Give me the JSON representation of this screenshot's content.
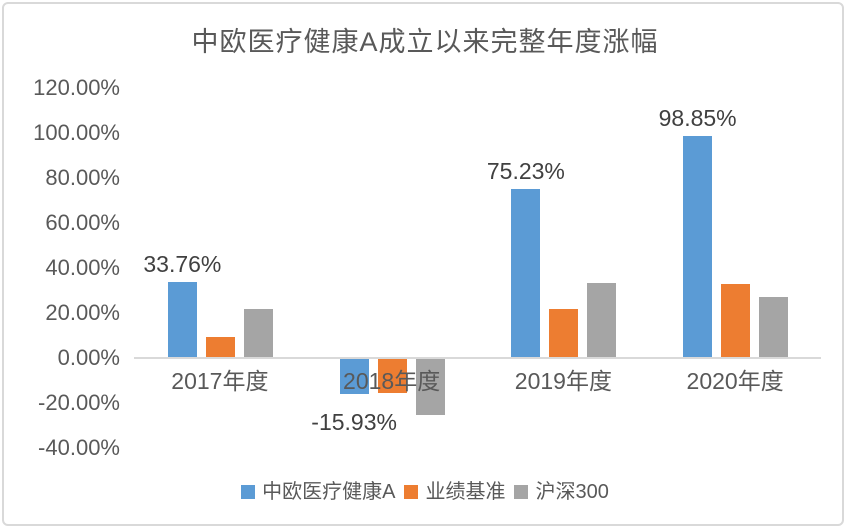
{
  "page": {
    "background": "#ffffff",
    "border_color": "#d9d9d9"
  },
  "chart_data": {
    "type": "bar",
    "title": "中欧医疗健康A成立以来完整年度涨幅",
    "categories": [
      "2017年度",
      "2018年度",
      "2019年度",
      "2020年度"
    ],
    "series": [
      {
        "name": "中欧医疗健康A",
        "color": "#5B9BD5",
        "values": [
          33.76,
          -15.93,
          75.23,
          98.85
        ],
        "data_labels": [
          "33.76%",
          "-15.93%",
          "75.23%",
          "98.85%"
        ]
      },
      {
        "name": "业绩基准",
        "color": "#ED7D31",
        "values": [
          9.3,
          -15.6,
          21.8,
          32.8
        ]
      },
      {
        "name": "沪深300",
        "color": "#A5A5A5",
        "values": [
          21.6,
          -25.3,
          33.5,
          27.1
        ]
      }
    ],
    "ylabel": "",
    "xlabel": "",
    "ylim": [
      -40,
      120
    ],
    "yticks": [
      {
        "label": "120.00%",
        "value": 120
      },
      {
        "label": "100.00%",
        "value": 100
      },
      {
        "label": "80.00%",
        "value": 80
      },
      {
        "label": "60.00%",
        "value": 60
      },
      {
        "label": "40.00%",
        "value": 40
      },
      {
        "label": "20.00%",
        "value": 20
      },
      {
        "label": "0.00%",
        "value": 0
      },
      {
        "label": "-20.00%",
        "value": -20
      },
      {
        "label": "-40.00%",
        "value": -40
      }
    ],
    "grid": false,
    "legend_position": "bottom",
    "axis_line_color": "#d9d9d9",
    "tick_text_color": "#595959",
    "category_text_color": "#595959",
    "data_label_color": "#404040",
    "title_color": "#595959"
  }
}
